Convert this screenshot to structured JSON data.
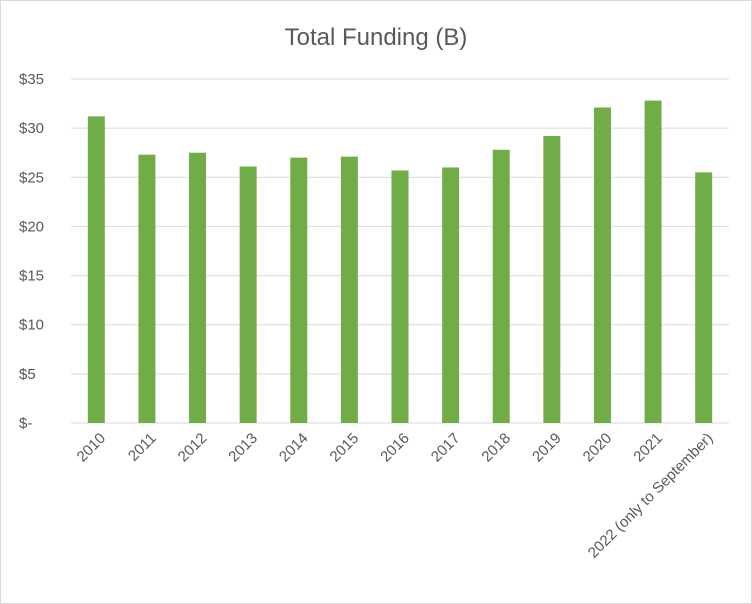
{
  "chart_data": {
    "type": "bar",
    "title": "Total Funding (B)",
    "xlabel": "",
    "ylabel": "",
    "categories": [
      "2010",
      "2011",
      "2012",
      "2013",
      "2014",
      "2015",
      "2016",
      "2017",
      "2018",
      "2019",
      "2020",
      "2021",
      "2022 (only to September)"
    ],
    "values": [
      31.2,
      27.3,
      27.5,
      26.1,
      27.0,
      27.1,
      25.7,
      26.0,
      27.8,
      29.2,
      32.1,
      32.8,
      25.5
    ],
    "ylim": [
      0,
      35
    ],
    "yticks": [
      0,
      5,
      10,
      15,
      20,
      25,
      30,
      35
    ],
    "ytick_labels": [
      "$-",
      "$5",
      "$10",
      "$15",
      "$20",
      "$25",
      "$30",
      "$35"
    ],
    "bar_color": "#70ad47",
    "gridline_color": "#d9d9d9",
    "grid": true,
    "legend": "none"
  }
}
